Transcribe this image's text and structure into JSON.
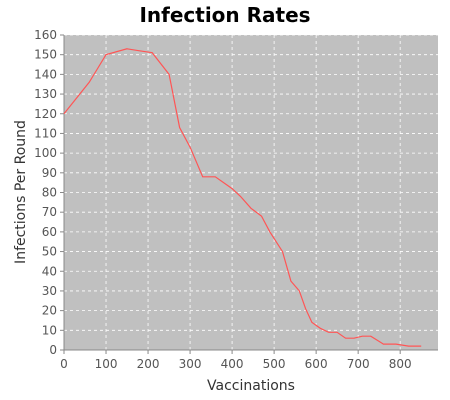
{
  "chart_data": {
    "type": "line",
    "title": "Infection Rates",
    "xlabel": "Vaccinations",
    "ylabel": "Infections Per Round",
    "xlim": [
      0,
      890
    ],
    "ylim": [
      0,
      160
    ],
    "x_ticks": [
      0,
      100,
      200,
      300,
      400,
      500,
      600,
      700,
      800
    ],
    "y_ticks": [
      0,
      10,
      20,
      30,
      40,
      50,
      60,
      70,
      80,
      90,
      100,
      110,
      120,
      130,
      140,
      150,
      160
    ],
    "grid": true,
    "background_color": "#c0c0c0",
    "line_color": "#ff5555",
    "series": [
      {
        "x": [
          0,
          30,
          60,
          80,
          100,
          150,
          180,
          210,
          250,
          275,
          300,
          330,
          360,
          400,
          420,
          445,
          470,
          490,
          520,
          540,
          560,
          575,
          590,
          610,
          630,
          650,
          670,
          690,
          710,
          730,
          760,
          790,
          820,
          850
        ],
        "y": [
          120,
          128,
          136,
          143,
          150,
          153,
          152,
          151,
          140,
          113,
          103,
          88,
          88,
          82,
          78,
          72,
          68,
          60,
          50,
          35,
          30,
          21,
          14,
          11,
          9,
          9,
          6,
          6,
          7,
          7,
          3,
          3,
          2,
          2
        ]
      }
    ]
  }
}
